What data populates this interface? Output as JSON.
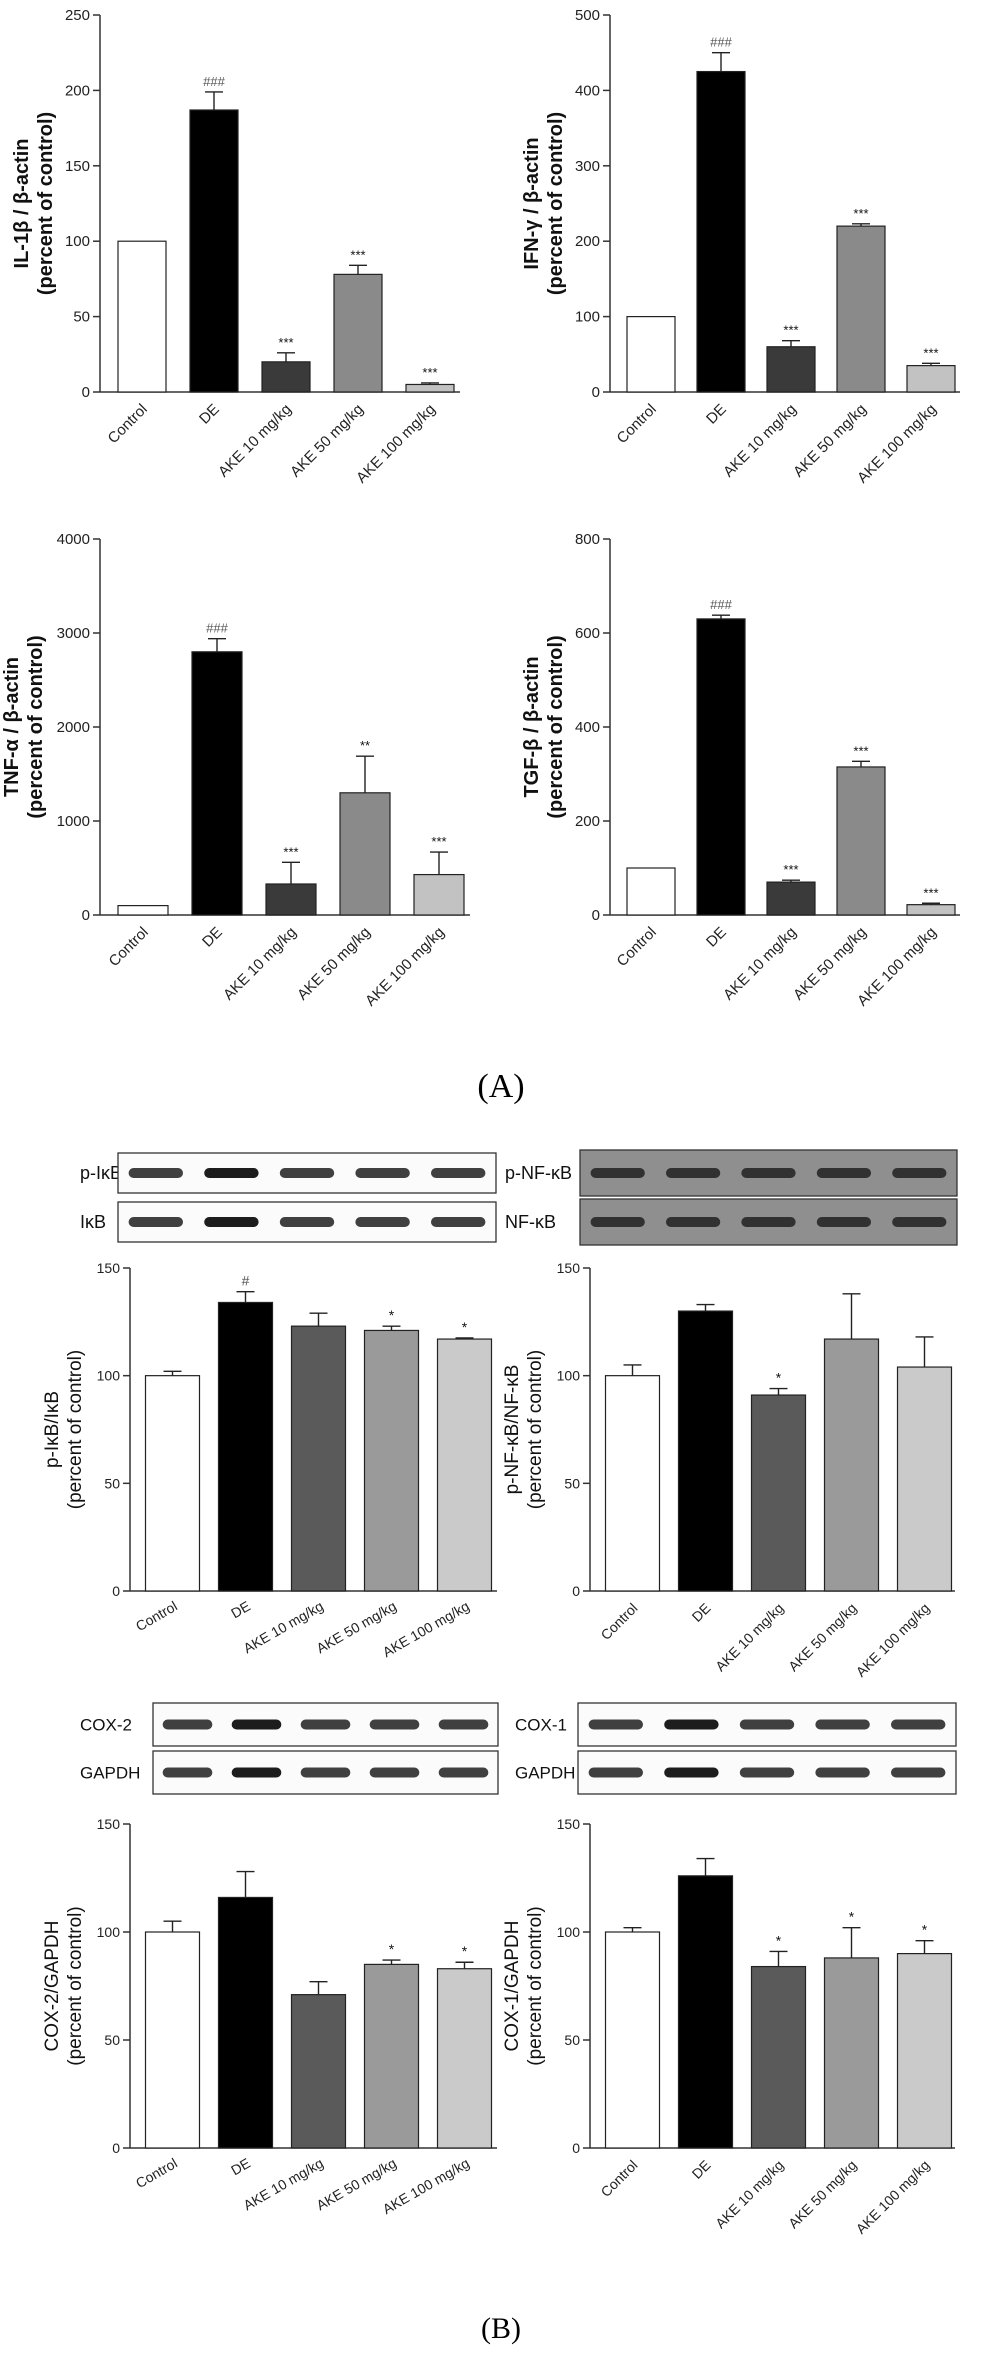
{
  "panels": {
    "a_label": "(A)",
    "b_label": "(B)"
  },
  "colors": {
    "Control": "#ffffff",
    "DE": "#000000",
    "AKE 10 mg/kg": "#3a3a3a",
    "AKE 50 mg/kg": "#8a8a8a",
    "AKE 100 mg/kg": "#c2c2c2"
  },
  "colors_b": {
    "Control": "#ffffff",
    "DE": "#000000",
    "AKE 10 mg/kg": "#5a5a5a",
    "AKE 50 mg/kg": "#9a9a9a",
    "AKE 100 mg/kg": "#cacaca"
  },
  "blots": [
    {
      "id": "blot-pikb",
      "rows": [
        {
          "label": "p-IκB",
          "dark": false
        },
        {
          "label": "IκB",
          "dark": false
        }
      ]
    },
    {
      "id": "blot-pnfkb",
      "rows": [
        {
          "label": "p-NF-κB",
          "dark": true
        },
        {
          "label": "NF-κB",
          "dark": true
        }
      ]
    },
    {
      "id": "blot-cox2",
      "rows": [
        {
          "label": "COX-2",
          "dark": false
        },
        {
          "label": "GAPDH",
          "dark": false
        }
      ]
    },
    {
      "id": "blot-cox1",
      "rows": [
        {
          "label": "COX-1",
          "dark": false
        },
        {
          "label": "GAPDH",
          "dark": false
        }
      ]
    }
  ],
  "chart_data": [
    {
      "id": "il1b",
      "type": "bar",
      "categories": [
        "Control",
        "DE",
        "AKE 10 mg/kg",
        "AKE 50 mg/kg",
        "AKE 100 mg/kg"
      ],
      "values": [
        100,
        187,
        20,
        78,
        5
      ],
      "errors": [
        0,
        12,
        6,
        6,
        1
      ],
      "annotations": [
        "",
        "###",
        "***",
        "***",
        "***"
      ],
      "ylabel": [
        "IL-1β / β-actin",
        "(percent of control)"
      ],
      "ylim": [
        0,
        250
      ],
      "yticks": [
        0,
        50,
        100,
        150,
        200,
        250
      ]
    },
    {
      "id": "ifng",
      "type": "bar",
      "categories": [
        "Control",
        "DE",
        "AKE 10 mg/kg",
        "AKE 50 mg/kg",
        "AKE 100 mg/kg"
      ],
      "values": [
        100,
        425,
        60,
        220,
        35
      ],
      "errors": [
        0,
        25,
        8,
        3,
        3
      ],
      "annotations": [
        "",
        "###",
        "***",
        "***",
        "***"
      ],
      "ylabel": [
        "IFN-γ / β-actin",
        "(percent of control)"
      ],
      "ylim": [
        0,
        500
      ],
      "yticks": [
        0,
        100,
        200,
        300,
        400,
        500
      ]
    },
    {
      "id": "tnfa",
      "type": "bar",
      "categories": [
        "Control",
        "DE",
        "AKE 10 mg/kg",
        "AKE 50 mg/kg",
        "AKE 100 mg/kg"
      ],
      "values": [
        100,
        2800,
        330,
        1300,
        430
      ],
      "errors": [
        0,
        140,
        230,
        390,
        240
      ],
      "annotations": [
        "",
        "###",
        "***",
        "**",
        "***"
      ],
      "ylabel": [
        "TNF-α / β-actin",
        "(percent of control)"
      ],
      "ylim": [
        0,
        4000
      ],
      "yticks": [
        0,
        1000,
        2000,
        3000,
        4000
      ]
    },
    {
      "id": "tgfb",
      "type": "bar",
      "categories": [
        "Control",
        "DE",
        "AKE 10 mg/kg",
        "AKE 50 mg/kg",
        "AKE 100 mg/kg"
      ],
      "values": [
        100,
        630,
        70,
        315,
        22
      ],
      "errors": [
        0,
        8,
        4,
        12,
        3
      ],
      "annotations": [
        "",
        "###",
        "***",
        "***",
        "***"
      ],
      "ylabel": [
        "TGF-β / β-actin",
        "(percent of control)"
      ],
      "ylim": [
        0,
        800
      ],
      "yticks": [
        0,
        200,
        400,
        600,
        800
      ]
    },
    {
      "id": "pikb",
      "type": "bar",
      "categories": [
        "Control",
        "DE",
        "AKE 10 mg/kg",
        "AKE 50 mg/kg",
        "AKE 100 mg/kg"
      ],
      "values": [
        100,
        134,
        123,
        121,
        117
      ],
      "errors": [
        2,
        5,
        6,
        2,
        0.5
      ],
      "annotations": [
        "",
        "#",
        "",
        "*",
        "*"
      ],
      "ylabel": [
        "p-IκB/IκB",
        "(percent of control)"
      ],
      "ylim": [
        0,
        150
      ],
      "yticks": [
        0,
        50,
        100,
        150
      ]
    },
    {
      "id": "pnfkb",
      "type": "bar",
      "categories": [
        "Control",
        "DE",
        "AKE 10 mg/kg",
        "AKE 50 mg/kg",
        "AKE 100 mg/kg"
      ],
      "values": [
        100,
        130,
        91,
        117,
        104
      ],
      "errors": [
        5,
        3,
        3,
        21,
        14
      ],
      "annotations": [
        "",
        "",
        "*",
        "",
        ""
      ],
      "ylabel": [
        "p-NF-κB/NF-κB",
        "(percent of control)"
      ],
      "ylim": [
        0,
        150
      ],
      "yticks": [
        0,
        50,
        100,
        150
      ]
    },
    {
      "id": "cox2",
      "type": "bar",
      "categories": [
        "Control",
        "DE",
        "AKE 10 mg/kg",
        "AKE 50 mg/kg",
        "AKE 100 mg/kg"
      ],
      "values": [
        100,
        116,
        71,
        85,
        83
      ],
      "errors": [
        5,
        12,
        6,
        2,
        3
      ],
      "annotations": [
        "",
        "",
        "",
        "*",
        "*"
      ],
      "ylabel": [
        "COX-2/GAPDH",
        "(percent of control)"
      ],
      "ylim": [
        0,
        150
      ],
      "yticks": [
        0,
        50,
        100,
        150
      ]
    },
    {
      "id": "cox1",
      "type": "bar",
      "categories": [
        "Control",
        "DE",
        "AKE 10 mg/kg",
        "AKE 50 mg/kg",
        "AKE 100 mg/kg"
      ],
      "values": [
        100,
        126,
        84,
        88,
        90
      ],
      "errors": [
        2,
        8,
        7,
        14,
        6
      ],
      "annotations": [
        "",
        "",
        "*",
        "*",
        "*"
      ],
      "ylabel": [
        "COX-1/GAPDH",
        "(percent of control)"
      ],
      "ylim": [
        0,
        150
      ],
      "yticks": [
        0,
        50,
        100,
        150
      ]
    }
  ]
}
